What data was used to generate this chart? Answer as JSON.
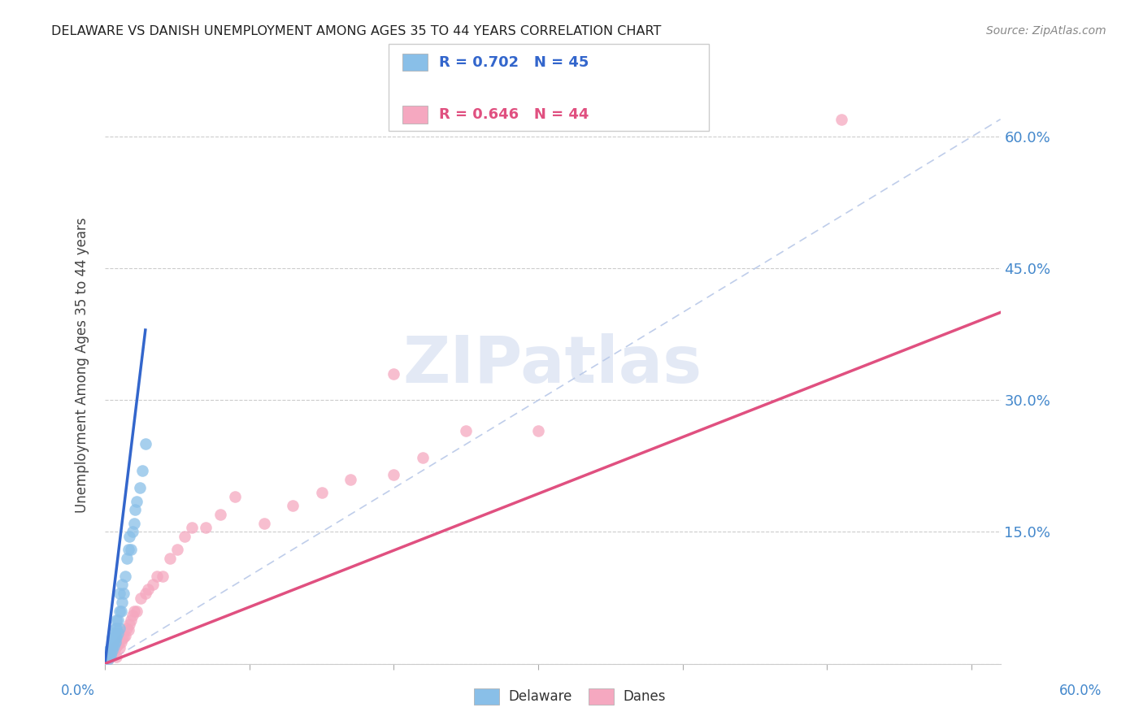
{
  "title": "DELAWARE VS DANISH UNEMPLOYMENT AMONG AGES 35 TO 44 YEARS CORRELATION CHART",
  "source": "Source: ZipAtlas.com",
  "ylabel": "Unemployment Among Ages 35 to 44 years",
  "xlim": [
    0.0,
    0.62
  ],
  "ylim": [
    0.0,
    0.68
  ],
  "yticks": [
    0.0,
    0.15,
    0.3,
    0.45,
    0.6
  ],
  "ytick_labels": [
    "",
    "15.0%",
    "30.0%",
    "45.0%",
    "60.0%"
  ],
  "background_color": "#ffffff",
  "delaware_color": "#89bfe8",
  "danes_color": "#f5a8c0",
  "delaware_line_color": "#3366cc",
  "danes_line_color": "#e05080",
  "dashed_line_color": "#b8c8e8",
  "R_delaware": 0.702,
  "N_delaware": 45,
  "R_danes": 0.646,
  "N_danes": 44,
  "del_x": [
    0.002,
    0.002,
    0.003,
    0.003,
    0.003,
    0.003,
    0.004,
    0.004,
    0.004,
    0.004,
    0.005,
    0.005,
    0.005,
    0.005,
    0.006,
    0.006,
    0.006,
    0.006,
    0.007,
    0.007,
    0.007,
    0.008,
    0.008,
    0.008,
    0.009,
    0.009,
    0.01,
    0.01,
    0.01,
    0.011,
    0.012,
    0.012,
    0.013,
    0.014,
    0.015,
    0.016,
    0.017,
    0.018,
    0.019,
    0.02,
    0.021,
    0.022,
    0.024,
    0.026,
    0.028
  ],
  "del_y": [
    0.005,
    0.008,
    0.008,
    0.01,
    0.012,
    0.015,
    0.01,
    0.012,
    0.015,
    0.018,
    0.015,
    0.02,
    0.025,
    0.03,
    0.02,
    0.025,
    0.03,
    0.035,
    0.025,
    0.03,
    0.04,
    0.03,
    0.04,
    0.05,
    0.035,
    0.05,
    0.04,
    0.06,
    0.08,
    0.06,
    0.07,
    0.09,
    0.08,
    0.1,
    0.12,
    0.13,
    0.145,
    0.13,
    0.15,
    0.16,
    0.175,
    0.185,
    0.2,
    0.22,
    0.25
  ],
  "dan_x": [
    0.002,
    0.003,
    0.004,
    0.005,
    0.006,
    0.007,
    0.008,
    0.008,
    0.009,
    0.01,
    0.011,
    0.012,
    0.013,
    0.014,
    0.015,
    0.016,
    0.017,
    0.018,
    0.019,
    0.02,
    0.022,
    0.025,
    0.028,
    0.03,
    0.033,
    0.036,
    0.04,
    0.045,
    0.05,
    0.055,
    0.06,
    0.07,
    0.08,
    0.09,
    0.11,
    0.13,
    0.15,
    0.17,
    0.2,
    0.22,
    0.25,
    0.3,
    0.51,
    0.2
  ],
  "dan_y": [
    0.005,
    0.008,
    0.01,
    0.012,
    0.015,
    0.018,
    0.008,
    0.02,
    0.022,
    0.018,
    0.025,
    0.028,
    0.03,
    0.032,
    0.04,
    0.038,
    0.045,
    0.05,
    0.055,
    0.06,
    0.06,
    0.075,
    0.08,
    0.085,
    0.09,
    0.1,
    0.1,
    0.12,
    0.13,
    0.145,
    0.155,
    0.155,
    0.17,
    0.19,
    0.16,
    0.18,
    0.195,
    0.21,
    0.215,
    0.235,
    0.265,
    0.265,
    0.62,
    0.33
  ],
  "del_line_x": [
    0.0,
    0.028
  ],
  "del_line_y": [
    0.0,
    0.38
  ],
  "dan_line_x": [
    0.0,
    0.62
  ],
  "dan_line_y": [
    0.0,
    0.4
  ]
}
